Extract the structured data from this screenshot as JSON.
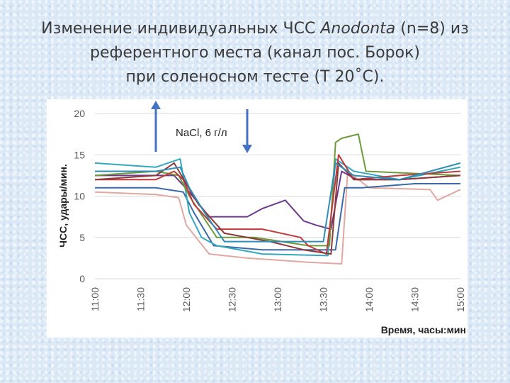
{
  "slide": {
    "title_line1_a": "Изменение индивидуальных ЧСС ",
    "title_line1_italic": "Anodonta",
    "title_line1_b": " (n=8) из",
    "title_line2": "референтного места (канал пос. Борок)",
    "title_line3": "при соленосном тесте (Т 20˚С)."
  },
  "chart_data": {
    "type": "line",
    "ylabel": "ЧСС, удары/мин.",
    "xlabel": "Время, часы:мин",
    "ylim": [
      0,
      20
    ],
    "y_ticks": [
      0,
      5,
      10,
      15,
      20
    ],
    "x_ticks": [
      "11:00",
      "11:30",
      "12:00",
      "12:30",
      "13:00",
      "13:30",
      "14:00",
      "14:30",
      "15:00"
    ],
    "x_range_minutes": [
      660,
      900
    ],
    "grid": "horizontal",
    "annotation": "NaCl, 6 г/л",
    "arrows": [
      {
        "time": "11:40",
        "direction": "up"
      },
      {
        "time": "12:40",
        "direction": "down"
      }
    ],
    "colors": [
      "#e0a8a0",
      "#3c6aa8",
      "#6e3a8c",
      "#34a7c0",
      "#6e9b3c",
      "#c0393b",
      "#8e3a3a",
      "#2e8eb8"
    ],
    "series": [
      {
        "x": [
          660,
          700,
          715,
          720,
          735,
          760,
          800,
          822,
          826,
          840,
          880,
          885,
          900
        ],
        "y": [
          10.5,
          10.2,
          9.8,
          6.5,
          3.0,
          2.5,
          2.0,
          1.8,
          13.0,
          11.0,
          10.8,
          9.5,
          10.8
        ]
      },
      {
        "x": [
          660,
          700,
          718,
          725,
          738,
          770,
          800,
          818,
          824,
          835,
          870,
          900
        ],
        "y": [
          11.0,
          11.0,
          10.5,
          8.0,
          4.0,
          3.5,
          3.5,
          3.5,
          11.0,
          11.0,
          11.5,
          11.5
        ]
      },
      {
        "x": [
          660,
          690,
          712,
          722,
          735,
          750,
          760,
          770,
          785,
          797,
          805,
          815,
          822,
          832,
          860,
          900
        ],
        "y": [
          12.5,
          12.5,
          12.5,
          10.5,
          7.5,
          7.5,
          7.5,
          8.5,
          9.5,
          7.0,
          6.5,
          6.0,
          13.0,
          12.0,
          12.0,
          12.5
        ]
      },
      {
        "x": [
          660,
          700,
          716,
          722,
          730,
          740,
          770,
          813,
          818,
          830,
          860,
          900
        ],
        "y": [
          14.0,
          13.5,
          14.5,
          8.0,
          5.0,
          4.0,
          3.0,
          2.8,
          14.5,
          13.0,
          12.0,
          13.5
        ]
      },
      {
        "x": [
          660,
          700,
          715,
          722,
          740,
          765,
          800,
          814,
          818,
          822,
          833,
          838,
          900
        ],
        "y": [
          12.5,
          13.0,
          12.5,
          10.0,
          5.0,
          5.0,
          4.0,
          4.0,
          16.5,
          17.0,
          17.5,
          13.0,
          12.5
        ]
      },
      {
        "x": [
          660,
          700,
          712,
          718,
          725,
          740,
          770,
          795,
          800,
          812,
          820,
          830,
          860,
          900
        ],
        "y": [
          12.0,
          12.0,
          13.0,
          12.0,
          9.0,
          6.0,
          6.0,
          5.0,
          4.0,
          3.0,
          15.0,
          12.0,
          12.5,
          13.0
        ]
      },
      {
        "x": [
          660,
          700,
          712,
          720,
          728,
          745,
          775,
          797,
          815,
          820,
          830,
          860,
          900
        ],
        "y": [
          12.0,
          12.5,
          14.0,
          11.5,
          9.0,
          5.5,
          4.5,
          3.5,
          3.0,
          14.0,
          12.0,
          12.0,
          12.5
        ]
      },
      {
        "x": [
          660,
          700,
          716,
          722,
          732,
          745,
          775,
          810,
          818,
          830,
          860,
          900
        ],
        "y": [
          13.0,
          13.0,
          13.5,
          11.0,
          8.0,
          4.5,
          4.5,
          4.5,
          14.0,
          12.5,
          12.0,
          14.0
        ]
      }
    ]
  }
}
